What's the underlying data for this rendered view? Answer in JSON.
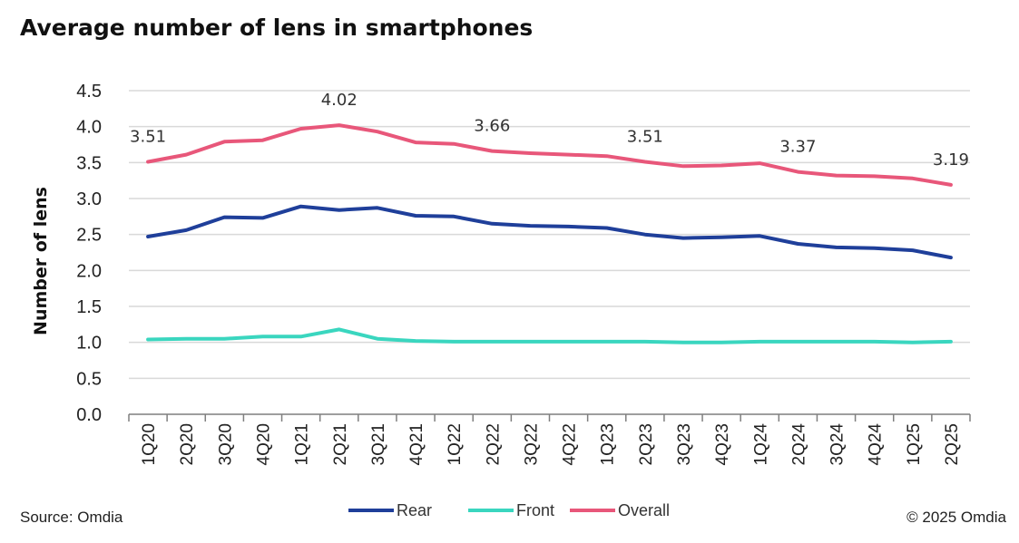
{
  "title": "Average number of lens in smartphones",
  "source": "Source: Omdia",
  "copyright": "© 2025 Omdia",
  "colors": {
    "Rear": "#1f3f9a",
    "Front": "#3ad6bf",
    "Overall": "#e8577a",
    "grid": "#d9d9d9",
    "axis": "#7f7f7f"
  },
  "chart_data": {
    "type": "line",
    "title": "Average number of lens in smartphones",
    "xlabel": "",
    "ylabel": "Number of lens",
    "ylim": [
      0,
      4.5
    ],
    "yticks": [
      "0.0",
      "0.5",
      "1.0",
      "1.5",
      "2.0",
      "2.5",
      "3.0",
      "3.5",
      "4.0",
      "4.5"
    ],
    "grid": true,
    "legend": "bottom",
    "categories": [
      "1Q20",
      "2Q20",
      "3Q20",
      "4Q20",
      "1Q21",
      "2Q21",
      "3Q21",
      "4Q21",
      "1Q22",
      "2Q22",
      "3Q22",
      "4Q22",
      "1Q23",
      "2Q23",
      "3Q23",
      "4Q23",
      "1Q24",
      "2Q24",
      "3Q24",
      "4Q24",
      "1Q25",
      "2Q25"
    ],
    "series": [
      {
        "name": "Rear",
        "values": [
          2.47,
          2.56,
          2.74,
          2.73,
          2.89,
          2.84,
          2.87,
          2.76,
          2.75,
          2.65,
          2.62,
          2.61,
          2.59,
          2.5,
          2.45,
          2.46,
          2.48,
          2.37,
          2.32,
          2.31,
          2.28,
          2.18
        ]
      },
      {
        "name": "Front",
        "values": [
          1.04,
          1.05,
          1.05,
          1.08,
          1.08,
          1.18,
          1.05,
          1.02,
          1.01,
          1.01,
          1.01,
          1.01,
          1.01,
          1.01,
          1.0,
          1.0,
          1.01,
          1.01,
          1.01,
          1.01,
          1.0,
          1.01
        ]
      },
      {
        "name": "Overall",
        "values": [
          3.51,
          3.61,
          3.79,
          3.81,
          3.97,
          4.02,
          3.93,
          3.78,
          3.76,
          3.66,
          3.63,
          3.61,
          3.59,
          3.51,
          3.45,
          3.46,
          3.49,
          3.37,
          3.32,
          3.31,
          3.28,
          3.19
        ]
      }
    ],
    "annotations": [
      {
        "series": "Overall",
        "category": "1Q20",
        "label": "3.51"
      },
      {
        "series": "Overall",
        "category": "2Q21",
        "label": "4.02"
      },
      {
        "series": "Overall",
        "category": "2Q22",
        "label": "3.66"
      },
      {
        "series": "Overall",
        "category": "2Q23",
        "label": "3.51"
      },
      {
        "series": "Overall",
        "category": "2Q24",
        "label": "3.37"
      },
      {
        "series": "Overall",
        "category": "2Q25",
        "label": "3.19"
      }
    ]
  }
}
